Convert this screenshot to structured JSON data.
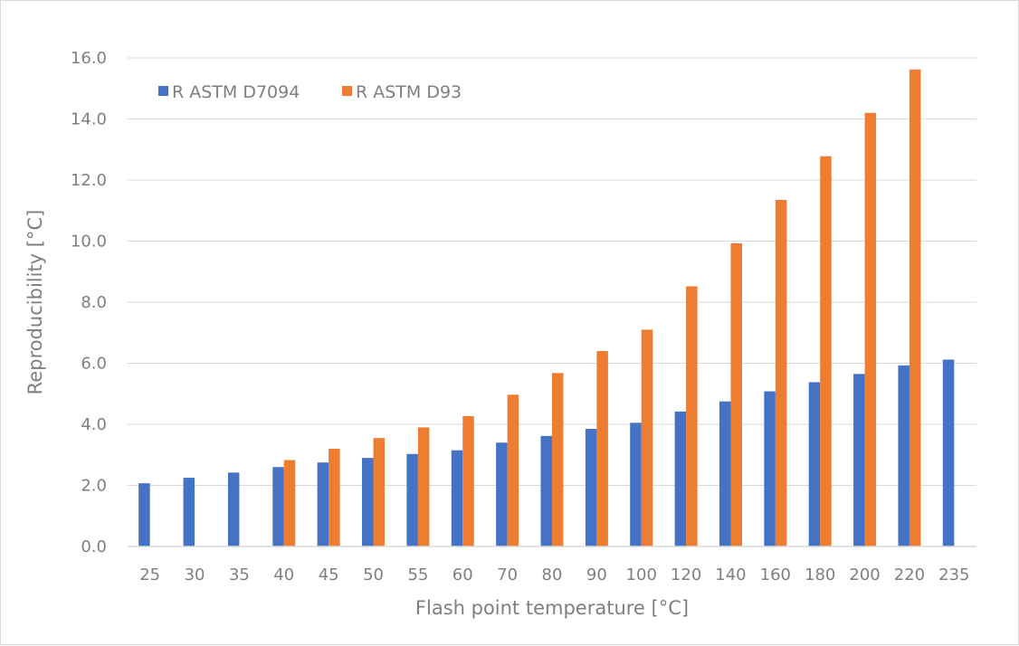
{
  "chart_data": {
    "type": "bar",
    "title": "",
    "xlabel": "Flash point temperature [°C]",
    "ylabel": "Reproducibility [°C]",
    "ylim": [
      0,
      16
    ],
    "ytick_step": 2,
    "ytick_decimals": 1,
    "grid": true,
    "legend_position": "top-left",
    "categories": [
      "25",
      "30",
      "35",
      "40",
      "45",
      "50",
      "55",
      "60",
      "70",
      "80",
      "90",
      "100",
      "120",
      "140",
      "160",
      "180",
      "200",
      "220",
      "235"
    ],
    "series": [
      {
        "name": "R ASTM D7094",
        "color": "#4472c4",
        "values": [
          2.07,
          2.25,
          2.42,
          2.6,
          2.75,
          2.9,
          3.03,
          3.15,
          3.4,
          3.62,
          3.85,
          4.05,
          4.42,
          4.75,
          5.08,
          5.38,
          5.65,
          5.93,
          6.12
        ]
      },
      {
        "name": "R ASTM D93",
        "color": "#ed7d31",
        "values": [
          null,
          null,
          null,
          2.83,
          3.2,
          3.55,
          3.9,
          4.27,
          4.97,
          5.68,
          6.4,
          7.1,
          8.52,
          9.93,
          11.35,
          12.78,
          14.2,
          15.62,
          null
        ]
      }
    ]
  }
}
